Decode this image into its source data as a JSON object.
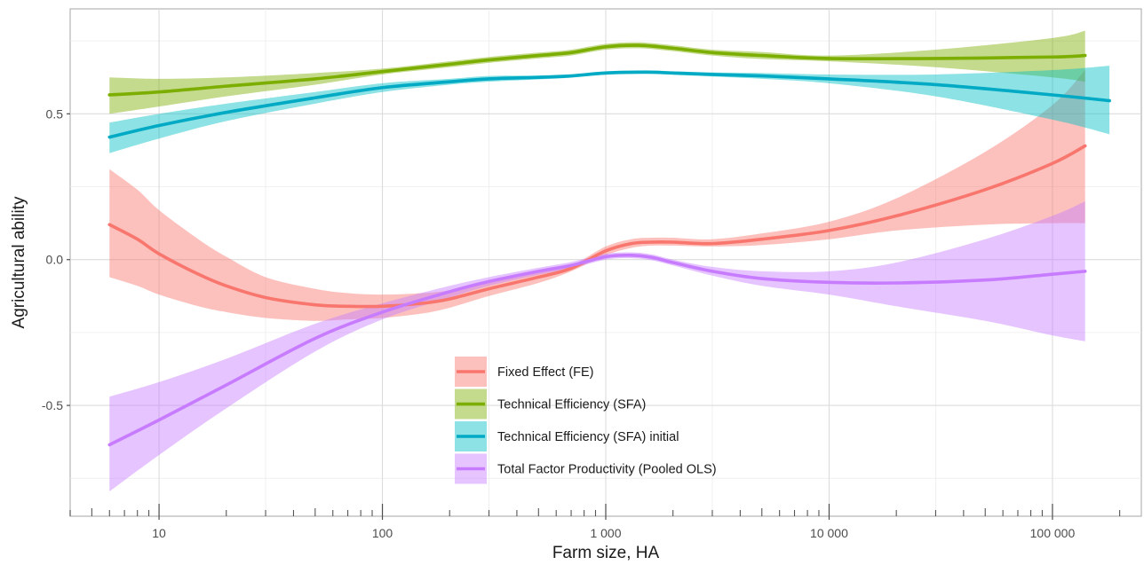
{
  "chart_data": {
    "type": "line",
    "title": "",
    "xlabel": "Farm size, HA",
    "ylabel": "Agricultural ability",
    "x_scale": "log",
    "xlim": [
      4,
      250000
    ],
    "ylim": [
      -0.88,
      0.86
    ],
    "grid": true,
    "legend_position": "bottom-center (inside plot)",
    "x_ticks": [
      {
        "value": 10,
        "label": "10"
      },
      {
        "value": 100,
        "label": "100"
      },
      {
        "value": 1000,
        "label": "1 000"
      },
      {
        "value": 10000,
        "label": "10 000"
      },
      {
        "value": 100000,
        "label": "100 000"
      }
    ],
    "y_ticks": [
      {
        "value": -0.5,
        "label": "-0.5"
      },
      {
        "value": 0.0,
        "label": "0.0"
      },
      {
        "value": 0.5,
        "label": "0.5"
      }
    ],
    "series": [
      {
        "name": "Fixed Effect (FE)",
        "color": "#f8766d",
        "band_color": "#f8766d",
        "x": [
          6,
          8,
          10,
          15,
          20,
          30,
          50,
          70,
          100,
          150,
          200,
          300,
          500,
          700,
          1000,
          1300,
          1600,
          2000,
          3000,
          5000,
          10000,
          20000,
          50000,
          100000,
          140000
        ],
        "y": [
          0.12,
          0.07,
          0.02,
          -0.05,
          -0.09,
          -0.13,
          -0.155,
          -0.16,
          -0.16,
          -0.15,
          -0.135,
          -0.1,
          -0.06,
          -0.03,
          0.03,
          0.055,
          0.06,
          0.06,
          0.055,
          0.07,
          0.1,
          0.15,
          0.24,
          0.33,
          0.39
        ],
        "lower": [
          -0.06,
          -0.09,
          -0.12,
          -0.16,
          -0.18,
          -0.2,
          -0.21,
          -0.205,
          -0.2,
          -0.185,
          -0.165,
          -0.125,
          -0.08,
          -0.04,
          0.015,
          0.04,
          0.048,
          0.048,
          0.045,
          0.05,
          0.07,
          0.1,
          0.12,
          0.125,
          0.125
        ],
        "upper": [
          0.31,
          0.24,
          0.17,
          0.07,
          0.01,
          -0.06,
          -0.1,
          -0.115,
          -0.12,
          -0.115,
          -0.105,
          -0.075,
          -0.045,
          -0.02,
          0.045,
          0.07,
          0.075,
          0.075,
          0.07,
          0.09,
          0.13,
          0.21,
          0.37,
          0.53,
          0.65
        ]
      },
      {
        "name": "Technical Efficiency (SFA)",
        "color": "#7cae00",
        "band_color": "#7cae00",
        "x": [
          6,
          10,
          20,
          50,
          100,
          200,
          300,
          500,
          700,
          1000,
          1400,
          2000,
          3000,
          5000,
          10000,
          30000,
          100000,
          140000
        ],
        "y": [
          0.565,
          0.575,
          0.595,
          0.62,
          0.645,
          0.67,
          0.685,
          0.7,
          0.71,
          0.73,
          0.735,
          0.725,
          0.71,
          0.7,
          0.69,
          0.69,
          0.695,
          0.7
        ],
        "lower": [
          0.5,
          0.525,
          0.56,
          0.6,
          0.635,
          0.66,
          0.675,
          0.69,
          0.7,
          0.72,
          0.725,
          0.715,
          0.7,
          0.688,
          0.68,
          0.66,
          0.625,
          0.61
        ],
        "upper": [
          0.625,
          0.62,
          0.625,
          0.64,
          0.655,
          0.68,
          0.695,
          0.71,
          0.72,
          0.74,
          0.745,
          0.735,
          0.72,
          0.712,
          0.7,
          0.72,
          0.76,
          0.785
        ]
      },
      {
        "name": "Technical Efficiency (SFA) initial",
        "color": "#00a9c4",
        "band_color": "#00bfc4",
        "x": [
          6,
          10,
          20,
          50,
          100,
          200,
          300,
          500,
          700,
          1000,
          1500,
          2000,
          3000,
          5000,
          10000,
          30000,
          100000,
          180000
        ],
        "y": [
          0.42,
          0.46,
          0.505,
          0.555,
          0.59,
          0.61,
          0.62,
          0.625,
          0.63,
          0.64,
          0.643,
          0.64,
          0.635,
          0.63,
          0.62,
          0.6,
          0.565,
          0.545
        ],
        "lower": [
          0.365,
          0.415,
          0.475,
          0.535,
          0.575,
          0.6,
          0.61,
          0.618,
          0.624,
          0.634,
          0.637,
          0.634,
          0.628,
          0.62,
          0.605,
          0.56,
          0.48,
          0.43
        ],
        "upper": [
          0.47,
          0.5,
          0.535,
          0.575,
          0.605,
          0.62,
          0.63,
          0.632,
          0.636,
          0.646,
          0.649,
          0.646,
          0.642,
          0.64,
          0.635,
          0.635,
          0.65,
          0.665
        ]
      },
      {
        "name": "Total Factor Productivity (Pooled OLS)",
        "color": "#c77cff",
        "band_color": "#c77cff",
        "x": [
          6,
          10,
          20,
          50,
          100,
          200,
          300,
          500,
          700,
          1000,
          1300,
          1600,
          2000,
          3000,
          5000,
          10000,
          20000,
          50000,
          100000,
          140000
        ],
        "y": [
          -0.635,
          -0.55,
          -0.43,
          -0.27,
          -0.18,
          -0.11,
          -0.075,
          -0.04,
          -0.02,
          0.01,
          0.015,
          0.008,
          -0.01,
          -0.04,
          -0.065,
          -0.078,
          -0.08,
          -0.07,
          -0.05,
          -0.04
        ],
        "lower": [
          -0.795,
          -0.67,
          -0.51,
          -0.315,
          -0.205,
          -0.13,
          -0.09,
          -0.052,
          -0.03,
          0.0,
          0.005,
          -0.002,
          -0.02,
          -0.055,
          -0.09,
          -0.12,
          -0.16,
          -0.21,
          -0.26,
          -0.28
        ],
        "upper": [
          -0.47,
          -0.42,
          -0.34,
          -0.22,
          -0.15,
          -0.09,
          -0.06,
          -0.028,
          -0.008,
          0.02,
          0.025,
          0.018,
          0.0,
          -0.025,
          -0.04,
          -0.04,
          -0.01,
          0.07,
          0.15,
          0.2
        ]
      }
    ]
  }
}
